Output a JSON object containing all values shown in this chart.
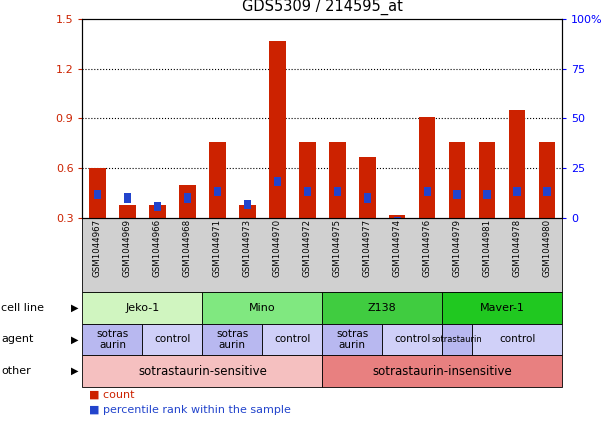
{
  "title": "GDS5309 / 214595_at",
  "samples": [
    "GSM1044967",
    "GSM1044969",
    "GSM1044966",
    "GSM1044968",
    "GSM1044971",
    "GSM1044973",
    "GSM1044970",
    "GSM1044972",
    "GSM1044975",
    "GSM1044977",
    "GSM1044974",
    "GSM1044976",
    "GSM1044979",
    "GSM1044981",
    "GSM1044978",
    "GSM1044980"
  ],
  "red_values": [
    0.6,
    0.38,
    0.38,
    0.5,
    0.76,
    0.38,
    1.37,
    0.76,
    0.76,
    0.67,
    0.32,
    0.91,
    0.76,
    0.76,
    0.95,
    0.76
  ],
  "blue_values": [
    0.44,
    0.42,
    0.37,
    0.42,
    0.46,
    0.38,
    0.52,
    0.46,
    0.46,
    0.42,
    0.28,
    0.46,
    0.44,
    0.44,
    0.46,
    0.46
  ],
  "ylim_left": [
    0.3,
    1.5
  ],
  "ylim_right": [
    0,
    100
  ],
  "yticks_left": [
    0.3,
    0.6,
    0.9,
    1.2,
    1.5
  ],
  "yticks_right": [
    0,
    25,
    50,
    75,
    100
  ],
  "ytick_labels_right": [
    "0",
    "25",
    "50",
    "75",
    "100%"
  ],
  "cell_lines": [
    {
      "label": "Jeko-1",
      "start": 0,
      "end": 4,
      "color": "#d0f5c0"
    },
    {
      "label": "Mino",
      "start": 4,
      "end": 8,
      "color": "#80e880"
    },
    {
      "label": "Z138",
      "start": 8,
      "end": 12,
      "color": "#40cc40"
    },
    {
      "label": "Maver-1",
      "start": 12,
      "end": 16,
      "color": "#20c820"
    }
  ],
  "agents": [
    {
      "label": "sotrastaurin",
      "start": 0,
      "end": 2,
      "color": "#b8b8f0"
    },
    {
      "label": "control",
      "start": 2,
      "end": 4,
      "color": "#d0d0f8"
    },
    {
      "label": "sotrastaurin",
      "start": 4,
      "end": 6,
      "color": "#b8b8f0"
    },
    {
      "label": "control",
      "start": 6,
      "end": 8,
      "color": "#d0d0f8"
    },
    {
      "label": "sotrastaurin",
      "start": 8,
      "end": 10,
      "color": "#b8b8f0"
    },
    {
      "label": "control",
      "start": 10,
      "end": 12,
      "color": "#d0d0f8"
    },
    {
      "label": "sotrastaurin",
      "start": 12,
      "end": 13,
      "color": "#b8b8f0"
    },
    {
      "label": "control",
      "start": 13,
      "end": 16,
      "color": "#d0d0f8"
    }
  ],
  "others": [
    {
      "label": "sotrastaurin-sensitive",
      "start": 0,
      "end": 8,
      "color": "#f5c0c0"
    },
    {
      "label": "sotrastaurin-insensitive",
      "start": 8,
      "end": 16,
      "color": "#e88080"
    }
  ],
  "bar_color_red": "#cc2200",
  "bar_color_blue": "#2244cc",
  "legend_count": "count",
  "legend_pct": "percentile rank within the sample",
  "row_labels": [
    "cell line",
    "agent",
    "other"
  ],
  "xlabel_bg": "#d0d0d0",
  "spine_color": "#000000"
}
